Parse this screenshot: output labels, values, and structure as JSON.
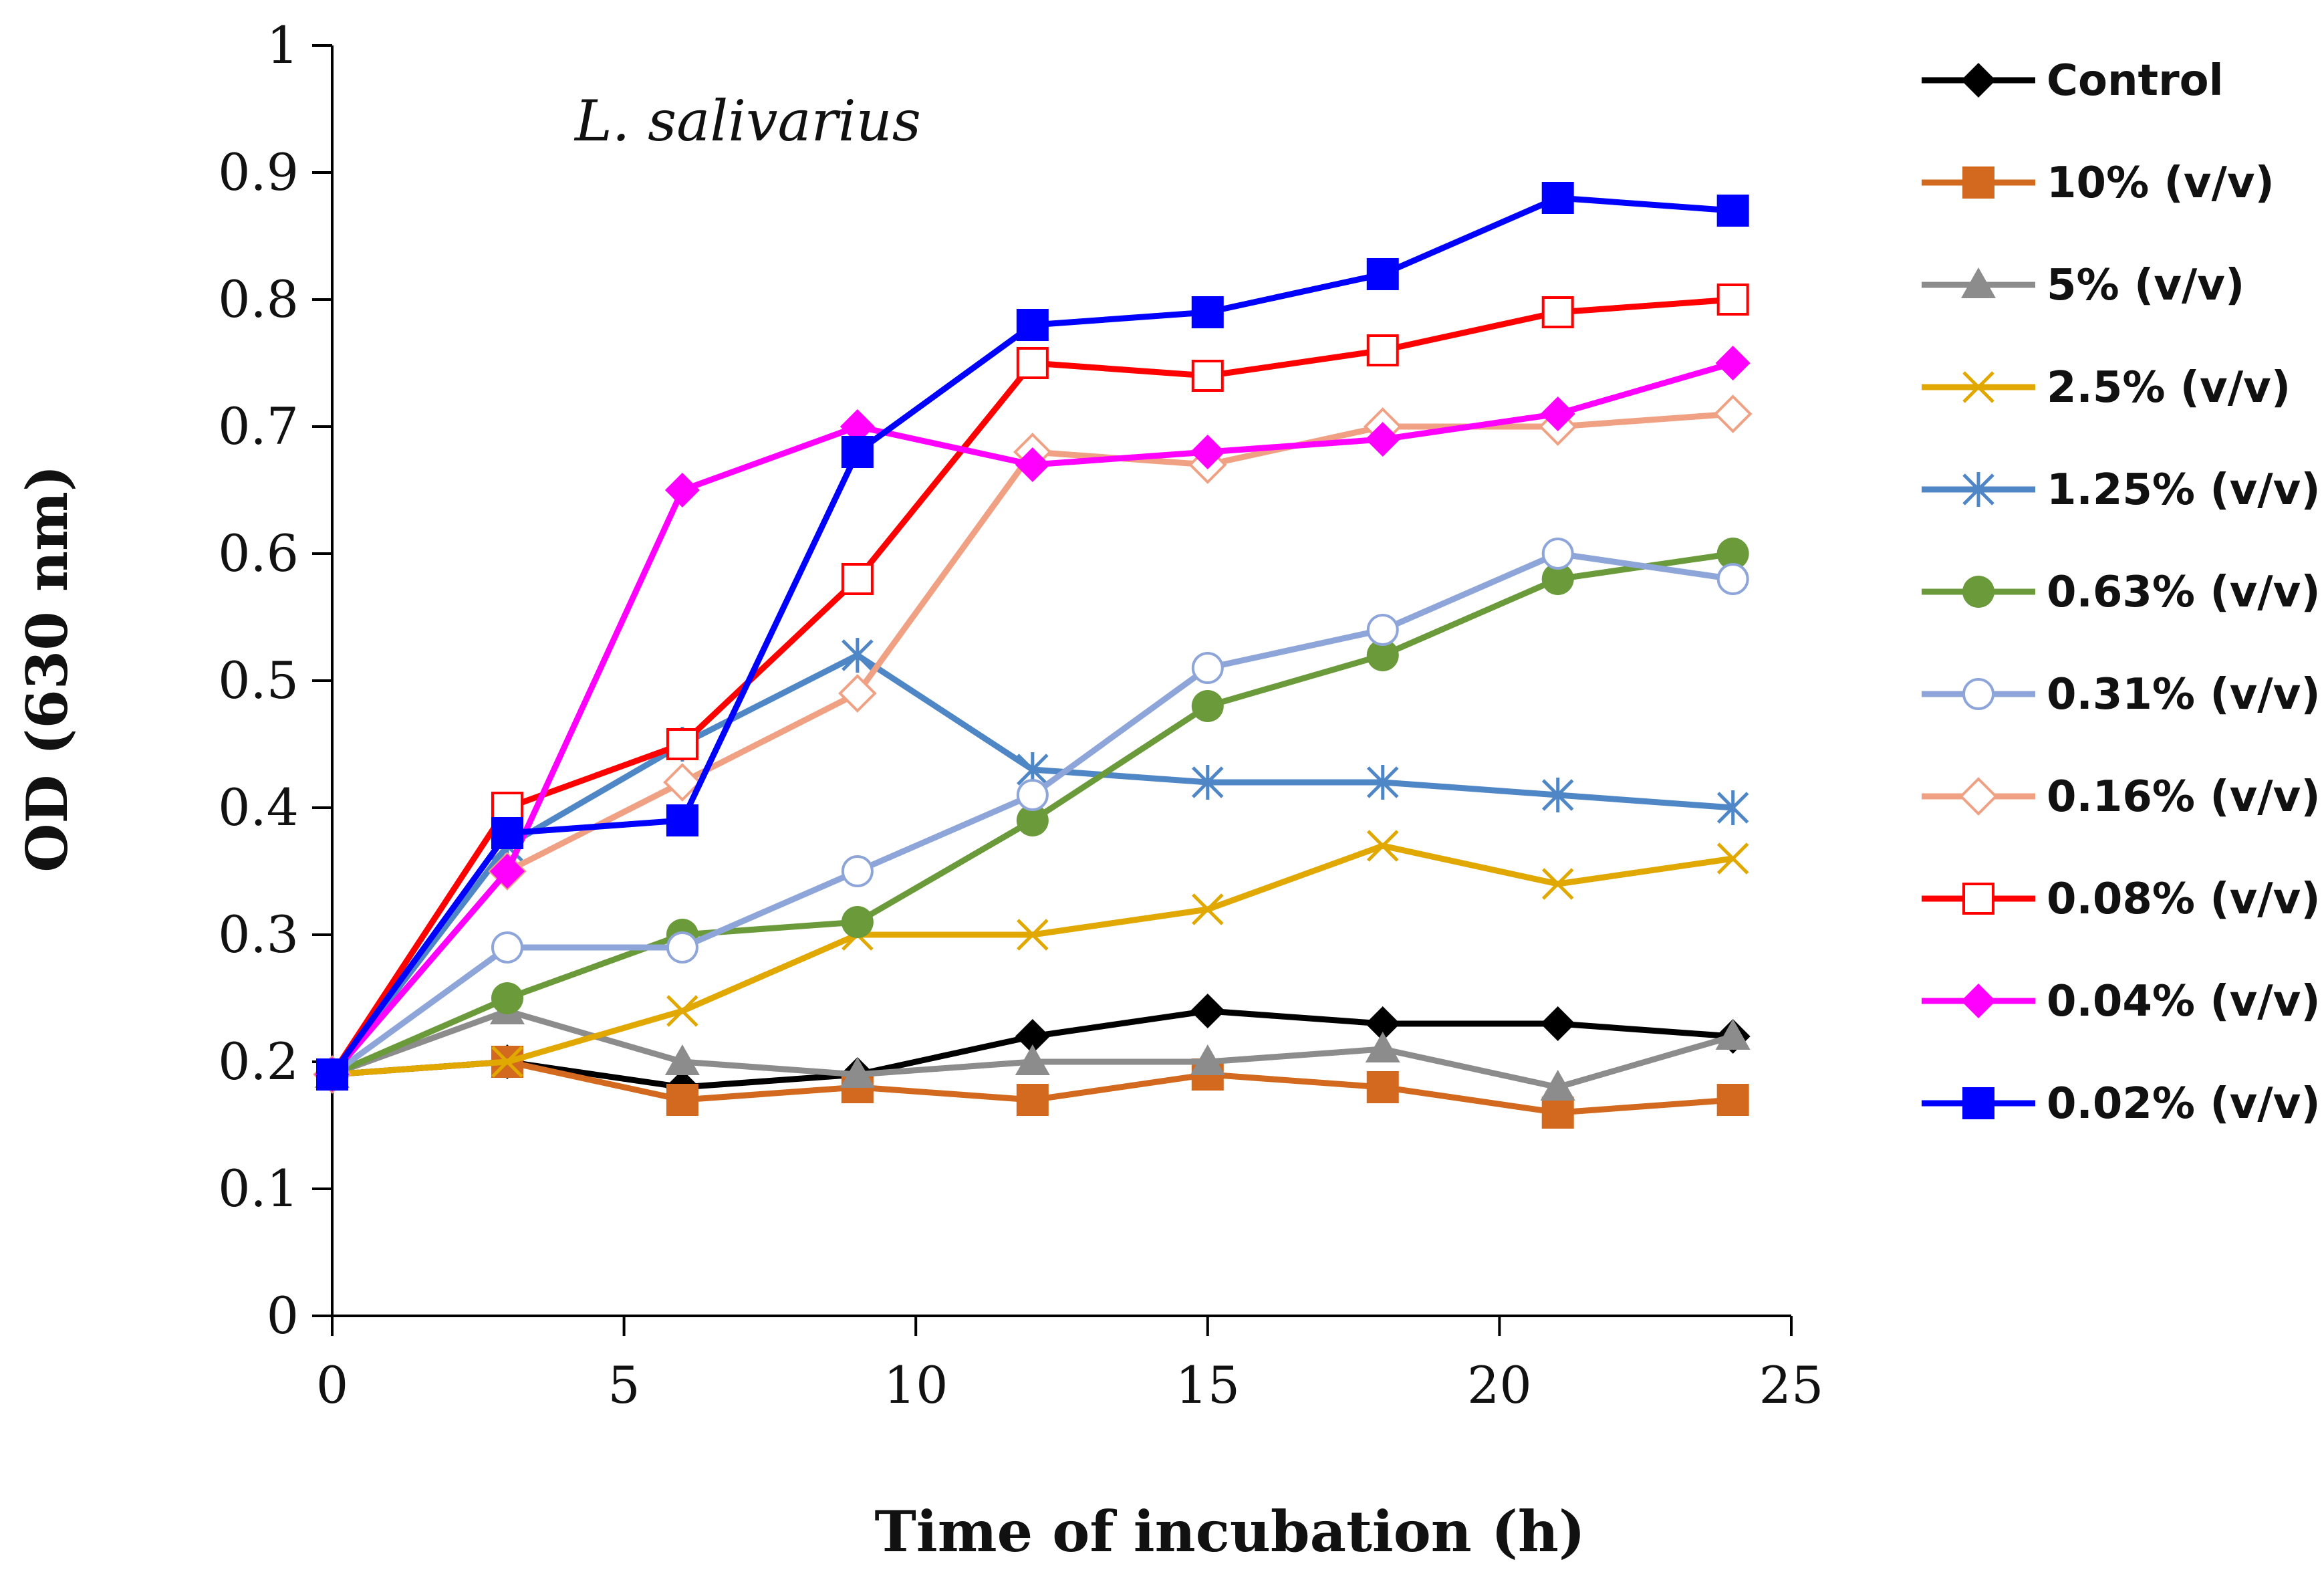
{
  "chart_data": {
    "type": "line",
    "annotation": "L. salivarius",
    "xlabel": "Time of incubation (h)",
    "ylabel": "OD (630 nm)",
    "xlim": [
      0,
      25
    ],
    "ylim": [
      0,
      1
    ],
    "x_ticks": [
      0,
      5,
      10,
      15,
      20,
      25
    ],
    "x_tick_labels": [
      "0",
      "5",
      "10",
      "15",
      "20",
      "25"
    ],
    "y_ticks": [
      0,
      0.1,
      0.2,
      0.3,
      0.4,
      0.5,
      0.6,
      0.7,
      0.8,
      0.9,
      1
    ],
    "y_tick_labels": [
      "0",
      "0.1",
      "0.2",
      "0.3",
      "0.4",
      "0.5",
      "0.6",
      "0.7",
      "0.8",
      "0.9",
      "1"
    ],
    "grid": false,
    "legend_position": "right",
    "x": [
      0,
      3,
      6,
      9,
      12,
      15,
      18,
      21,
      24
    ],
    "series": [
      {
        "name": "Control",
        "color": "#000000",
        "marker": "diamond-filled",
        "values": [
          0.19,
          0.2,
          0.18,
          0.19,
          0.22,
          0.24,
          0.23,
          0.23,
          0.22
        ]
      },
      {
        "name": "10% (v/v)",
        "color": "#D2691E",
        "marker": "square-filled",
        "values": [
          0.19,
          0.2,
          0.17,
          0.18,
          0.17,
          0.19,
          0.18,
          0.16,
          0.17
        ]
      },
      {
        "name": "5% (v/v)",
        "color": "#8C8C8C",
        "marker": "triangle-filled",
        "values": [
          0.19,
          0.24,
          0.2,
          0.19,
          0.2,
          0.2,
          0.21,
          0.18,
          0.22
        ]
      },
      {
        "name": "2.5% (v/v)",
        "color": "#E0A800",
        "marker": "x",
        "values": [
          0.19,
          0.2,
          0.24,
          0.3,
          0.3,
          0.32,
          0.37,
          0.34,
          0.36
        ]
      },
      {
        "name": "1.25% (v/v)",
        "color": "#4F86C6",
        "marker": "asterisk",
        "values": [
          0.19,
          0.37,
          0.45,
          0.52,
          0.43,
          0.42,
          0.42,
          0.41,
          0.4
        ]
      },
      {
        "name": "0.63% (v/v)",
        "color": "#6A9A3A",
        "marker": "circle-filled",
        "values": [
          0.19,
          0.25,
          0.3,
          0.31,
          0.39,
          0.48,
          0.52,
          0.58,
          0.6
        ]
      },
      {
        "name": "0.31% (v/v)",
        "color": "#8EA5D9",
        "marker": "circle-open",
        "values": [
          0.19,
          0.29,
          0.29,
          0.35,
          0.41,
          0.51,
          0.54,
          0.6,
          0.58
        ]
      },
      {
        "name": "0.16% (v/v)",
        "color": "#F0A184",
        "marker": "diamond-open",
        "values": [
          0.19,
          0.35,
          0.42,
          0.49,
          0.68,
          0.67,
          0.7,
          0.7,
          0.71
        ]
      },
      {
        "name": "0.08% (v/v)",
        "color": "#FF0000",
        "marker": "square-open",
        "values": [
          0.19,
          0.4,
          0.45,
          0.58,
          0.75,
          0.74,
          0.76,
          0.79,
          0.8
        ]
      },
      {
        "name": "0.04% (v/v)",
        "color": "#FF00FF",
        "marker": "diamond-filled",
        "values": [
          0.19,
          0.35,
          0.65,
          0.7,
          0.67,
          0.68,
          0.69,
          0.71,
          0.75
        ]
      },
      {
        "name": "0.02% (v/v)",
        "color": "#0000FF",
        "marker": "square-filled",
        "values": [
          0.19,
          0.38,
          0.39,
          0.68,
          0.78,
          0.79,
          0.82,
          0.88,
          0.87
        ]
      }
    ]
  }
}
